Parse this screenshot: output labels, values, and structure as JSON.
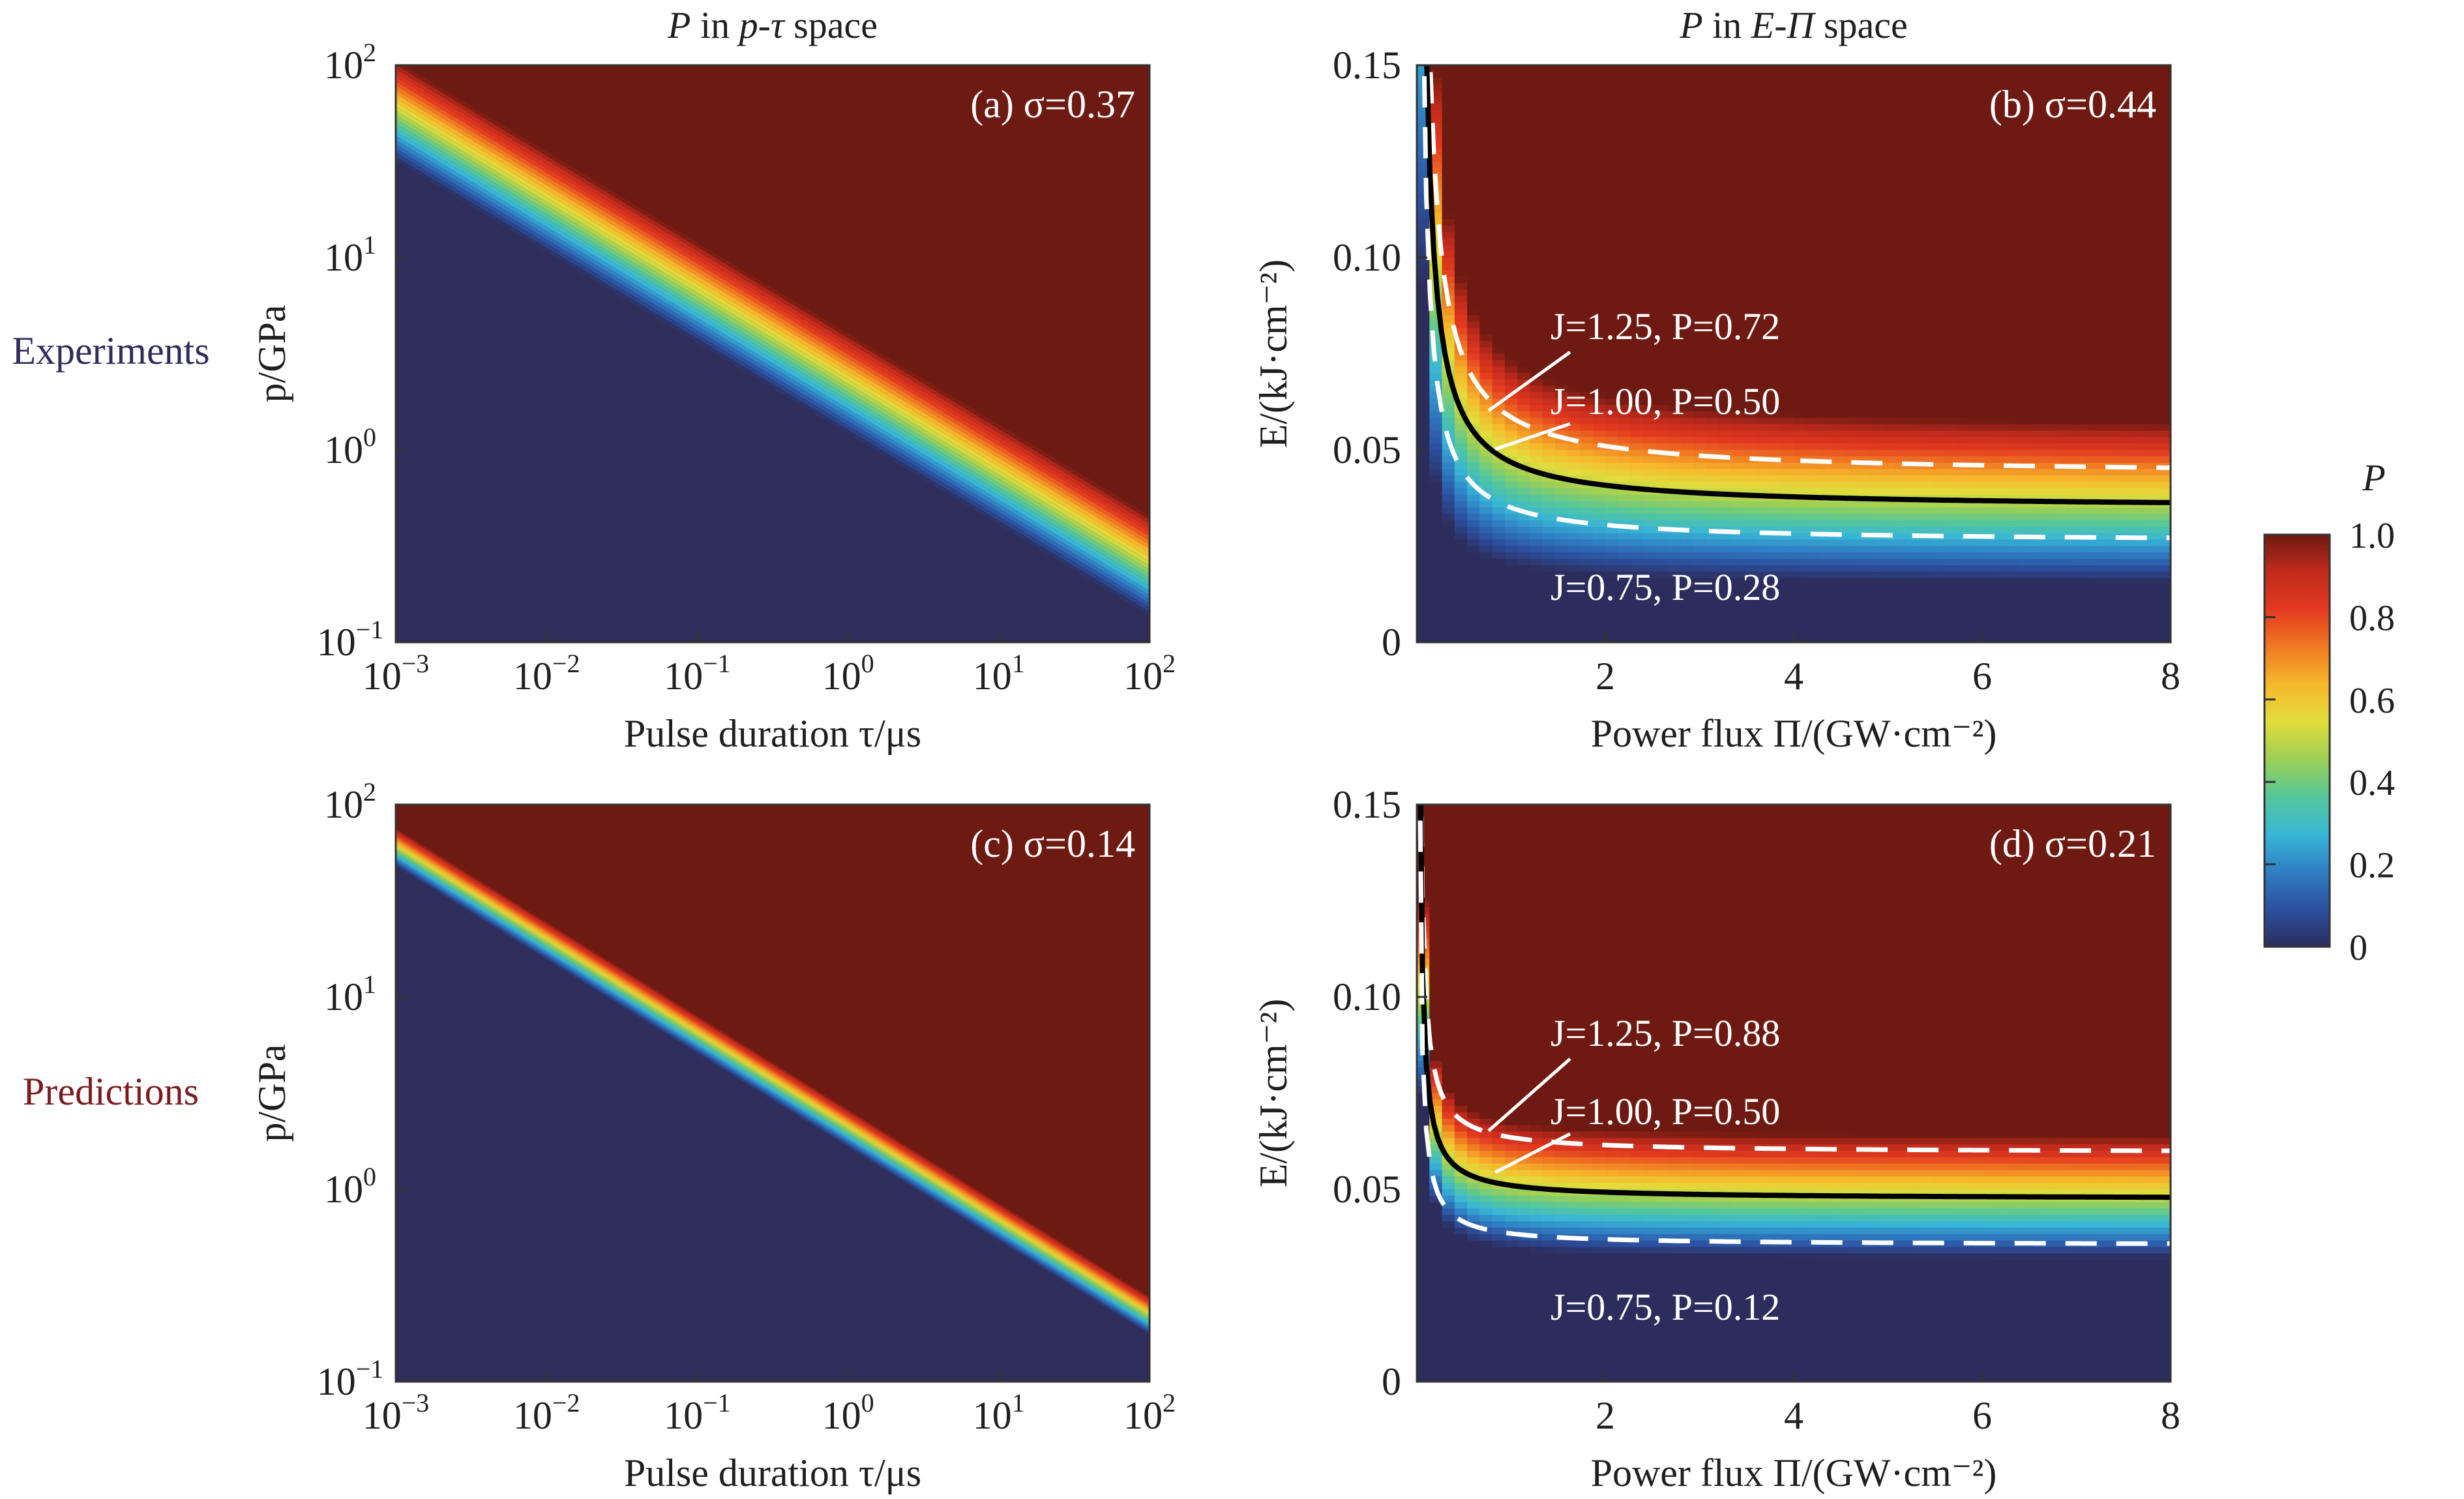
{
  "figure": {
    "col_titles": [
      {
        "italic_p": "P",
        "rest": " in ",
        "space": "p-τ",
        "suffix": " space"
      },
      {
        "italic_p": "P",
        "rest": " in ",
        "space": "E-Π",
        "suffix": " space"
      }
    ],
    "row_labels": [
      "Experiments",
      "Predictions"
    ],
    "colorbar": {
      "label": "P",
      "ticks": [
        "1.0",
        "0.8",
        "0.6",
        "0.4",
        "0.2",
        "0"
      ],
      "colors": [
        "#2c2d5c",
        "#2c4f9e",
        "#2f7fc4",
        "#38b6d6",
        "#55c79a",
        "#9ccf55",
        "#e2dd3c",
        "#f6b82c",
        "#f07a22",
        "#e33a20",
        "#c22a1c",
        "#6e1a12"
      ]
    },
    "colors": {
      "red_region": "#6d1a12",
      "blue_region": "#2f2d5a",
      "row_label_experiments": "#2f2d5a",
      "row_label_predictions": "#7a1c22"
    }
  },
  "chart_data": [
    {
      "id": "a",
      "type": "heatmap",
      "panel_label": "(a) σ=0.37",
      "xlabel": "Pulse duration τ/μs",
      "ylabel": "p/GPa",
      "x_scale": "log",
      "y_scale": "log",
      "xlim": [
        0.001,
        100
      ],
      "ylim": [
        0.1,
        100
      ],
      "x_ticks": [
        {
          "base": "10",
          "exp": "−3"
        },
        {
          "base": "10",
          "exp": "−2"
        },
        {
          "base": "10",
          "exp": "−1"
        },
        {
          "base": "10",
          "exp": "0"
        },
        {
          "base": "10",
          "exp": "1"
        },
        {
          "base": "10",
          "exp": "2"
        }
      ],
      "y_ticks": [
        {
          "base": "10",
          "exp": "−1"
        },
        {
          "base": "10",
          "exp": "0"
        },
        {
          "base": "10",
          "exp": "1"
        },
        {
          "base": "10",
          "exp": "2"
        }
      ],
      "boundary_line": {
        "tau": [
          0.001,
          100
        ],
        "p": [
          58,
          0.25
        ]
      },
      "band_width_decades": 0.26
    },
    {
      "id": "b",
      "type": "heatmap",
      "panel_label": "(b) σ=0.44",
      "xlabel": "Power flux Π/(GW·cm⁻²)",
      "ylabel": "E/(kJ·cm⁻²)",
      "xlim": [
        0,
        8
      ],
      "ylim": [
        0,
        0.15
      ],
      "x_ticks": [
        "2",
        "4",
        "6",
        "8"
      ],
      "y_ticks": [
        "0",
        "0.05",
        "0.10",
        "0.15"
      ],
      "contours": [
        {
          "J": "1.25",
          "P": "0.72",
          "style": "dashed",
          "color": "#ffffff",
          "E_inf": 0.0435,
          "k": 0.015
        },
        {
          "J": "1.00",
          "P": "0.50",
          "style": "solid",
          "color": "#000000",
          "E_inf": 0.0348,
          "k": 0.012
        },
        {
          "J": "0.75",
          "P": "0.28",
          "style": "dashed",
          "color": "#ffffff",
          "E_inf": 0.026,
          "k": 0.009
        }
      ],
      "annotations": [
        "J=1.25, P=0.72",
        "J=1.00, P=0.50",
        "J=0.75, P=0.28"
      ]
    },
    {
      "id": "c",
      "type": "heatmap",
      "panel_label": "(c) σ=0.14",
      "xlabel": "Pulse duration τ/μs",
      "ylabel": "p/GPa",
      "x_scale": "log",
      "y_scale": "log",
      "xlim": [
        0.001,
        100
      ],
      "ylim": [
        0.1,
        100
      ],
      "x_ticks": [
        {
          "base": "10",
          "exp": "−3"
        },
        {
          "base": "10",
          "exp": "−2"
        },
        {
          "base": "10",
          "exp": "−1"
        },
        {
          "base": "10",
          "exp": "0"
        },
        {
          "base": "10",
          "exp": "1"
        },
        {
          "base": "10",
          "exp": "2"
        }
      ],
      "y_ticks": [
        {
          "base": "10",
          "exp": "−1"
        },
        {
          "base": "10",
          "exp": "0"
        },
        {
          "base": "10",
          "exp": "1"
        },
        {
          "base": "10",
          "exp": "2"
        }
      ],
      "boundary_line": {
        "tau": [
          0.001,
          100
        ],
        "p": [
          60,
          0.22
        ]
      },
      "band_width_decades": 0.1
    },
    {
      "id": "d",
      "type": "heatmap",
      "panel_label": "(d) σ=0.21",
      "xlabel": "Power flux Π/(GW·cm⁻²)",
      "ylabel": "E/(kJ·cm⁻²)",
      "xlim": [
        0,
        8
      ],
      "ylim": [
        0,
        0.15
      ],
      "x_ticks": [
        "2",
        "4",
        "6",
        "8"
      ],
      "y_ticks": [
        "0",
        "0.05",
        "0.10",
        "0.15"
      ],
      "contours": [
        {
          "J": "1.25",
          "P": "0.88",
          "style": "dashed",
          "color": "#ffffff",
          "E_inf": 0.0595,
          "k": 0.004
        },
        {
          "J": "1.00",
          "P": "0.50",
          "style": "solid",
          "color": "#000000",
          "E_inf": 0.0475,
          "k": 0.0035
        },
        {
          "J": "0.75",
          "P": "0.12",
          "style": "dashed",
          "color": "#ffffff",
          "E_inf": 0.0355,
          "k": 0.003
        }
      ],
      "annotations": [
        "J=1.25, P=0.88",
        "J=1.00, P=0.50",
        "J=0.75, P=0.12"
      ]
    }
  ]
}
